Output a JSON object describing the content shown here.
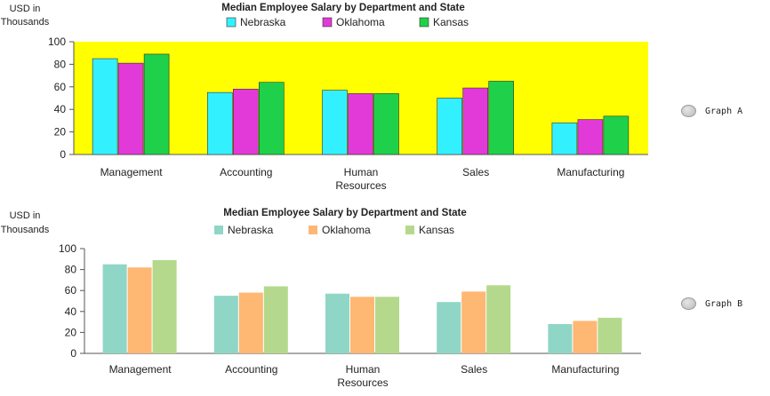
{
  "chart_data": [
    {
      "type": "bar",
      "title": "Median Employee Salary by Department and State",
      "ylabel": [
        "USD in",
        "Thousands"
      ],
      "xlabel": "",
      "ylim": [
        0,
        100
      ],
      "yticks": [
        0,
        20,
        40,
        60,
        80,
        100
      ],
      "categories": [
        [
          "Management"
        ],
        [
          "Accounting"
        ],
        [
          "Human",
          "Resources"
        ],
        [
          "Sales"
        ],
        [
          "Manufacturing"
        ]
      ],
      "series": [
        {
          "name": "Nebraska",
          "color": "#33f0ff",
          "values": [
            85,
            55,
            57,
            50,
            28
          ]
        },
        {
          "name": "Oklahoma",
          "color": "#e23ad8",
          "values": [
            81,
            58,
            54,
            59,
            31
          ]
        },
        {
          "name": "Kansas",
          "color": "#1fd14a",
          "values": [
            89,
            64,
            54,
            65,
            34
          ]
        }
      ],
      "plot_background": "#ffff00",
      "grid": false,
      "legend_position": "top"
    },
    {
      "type": "bar",
      "title": "Median Employee Salary by Department and State",
      "ylabel": [
        "USD in",
        "Thousands"
      ],
      "xlabel": "",
      "ylim": [
        0,
        100
      ],
      "yticks": [
        0,
        20,
        40,
        60,
        80,
        100
      ],
      "categories": [
        [
          "Management"
        ],
        [
          "Accounting"
        ],
        [
          "Human",
          "Resources"
        ],
        [
          "Sales"
        ],
        [
          "Manufacturing"
        ]
      ],
      "series": [
        {
          "name": "Nebraska",
          "color": "#8fd6c6",
          "values": [
            85,
            55,
            57,
            49,
            28
          ]
        },
        {
          "name": "Oklahoma",
          "color": "#ffb774",
          "values": [
            82,
            58,
            54,
            59,
            31
          ]
        },
        {
          "name": "Kansas",
          "color": "#b4d98c",
          "values": [
            89,
            64,
            54,
            65,
            34
          ]
        }
      ],
      "plot_background": "#ffffff",
      "grid": false,
      "legend_position": "top"
    }
  ],
  "options": [
    {
      "label": "Graph A"
    },
    {
      "label": "Graph B"
    }
  ]
}
